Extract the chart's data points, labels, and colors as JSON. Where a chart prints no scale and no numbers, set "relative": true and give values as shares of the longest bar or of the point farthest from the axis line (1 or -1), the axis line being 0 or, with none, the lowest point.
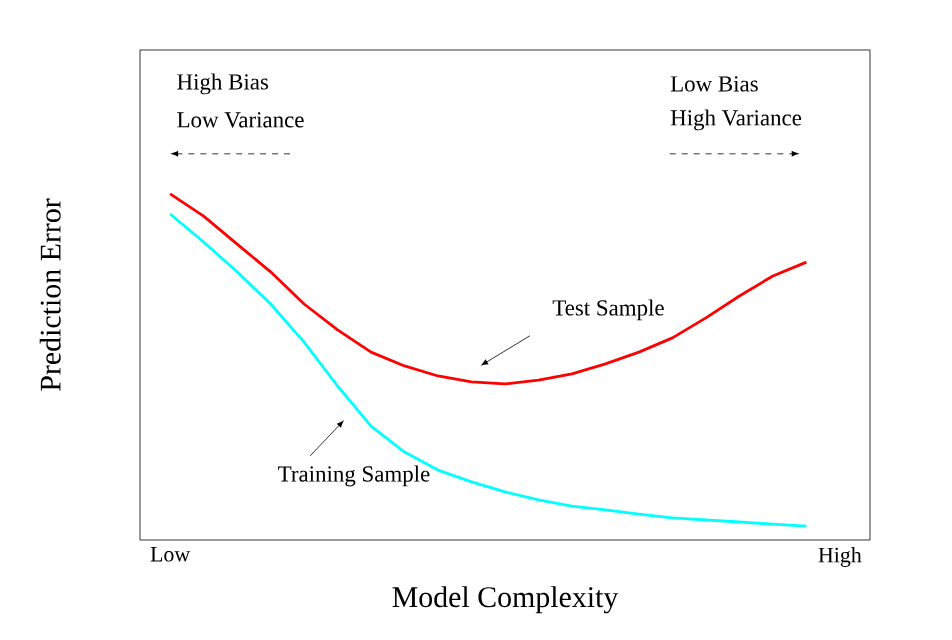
{
  "chart_data": {
    "type": "line",
    "relative": true,
    "xlabel": "Model Complexity",
    "ylabel": "Prediction Error",
    "categories": [
      "Low",
      null,
      null,
      null,
      null,
      null,
      null,
      null,
      null,
      null,
      null,
      null,
      null,
      null,
      null,
      null,
      null,
      null,
      null,
      null,
      "High"
    ],
    "tick_labels": "x",
    "marker": "none",
    "line_style": "solid",
    "series": [
      {
        "color": "#ff0000",
        "values": [
          1,
          0.936,
          0.855,
          0.775,
          0.682,
          0.607,
          0.543,
          0.503,
          0.474,
          0.457,
          0.451,
          0.462,
          0.48,
          0.509,
          0.543,
          0.584,
          0.642,
          0.705,
          0.763,
          0.803,
          null
        ]
      },
      {
        "color": "#00ffff",
        "values": [
          0.942,
          0.861,
          0.775,
          0.682,
          0.572,
          0.445,
          0.329,
          0.254,
          0.202,
          0.168,
          0.139,
          0.116,
          0.098,
          0.087,
          0.075,
          0.064,
          0.058,
          0.052,
          0.046,
          0.04,
          null
        ]
      }
    ],
    "annotations": [
      "High Bias",
      "Low Variance",
      "Low Bias",
      "High Variance",
      "Test Sample",
      "Training Sample"
    ]
  }
}
